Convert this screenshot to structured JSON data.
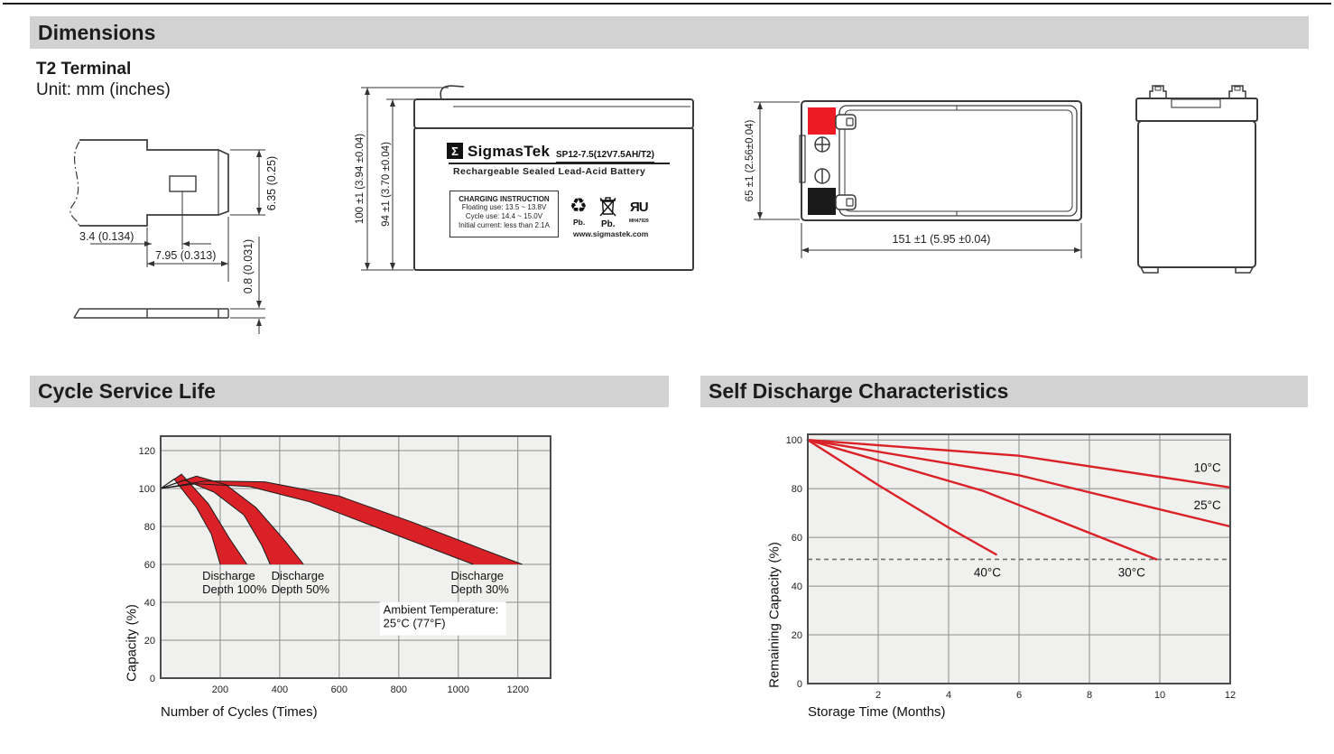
{
  "page": {
    "dimensions_title": "Dimensions",
    "terminal_type": "T2 Terminal",
    "unit_note": "Unit: mm (inches)",
    "cycle_title": "Cycle Service Life",
    "self_title": "Self Discharge Characteristics"
  },
  "terminal_drawing": {
    "dim_tab_offset": "3.4 (0.134)",
    "dim_tab_width": "7.95 (0.313)",
    "dim_tab_height": "6.35 (0.25)",
    "dim_tab_thickness": "0.8 (0.031)"
  },
  "front_view": {
    "dim_total_height": "100 ±1 (3.94 ±0.04)",
    "dim_case_height": "94 ±1 (3.70 ±0.04)",
    "logo_sigma": "Σ",
    "brand": "SigmasTek",
    "model": "SP12-7.5(12V7.5AH/T2)",
    "subtitle": "Rechargeable Sealed Lead-Acid Battery",
    "charging_title": "CHARGING INSTRUCTION",
    "charging_line1": "Floating use: 13.5 ~ 13.8V",
    "charging_line2": "Cycle use: 14.4 ~ 15.0V",
    "charging_line3": "Initial current: less than 2.1A",
    "recycle_glyph": "♻",
    "pb_recycle_label": "Pb.",
    "pb_trash_label": "Pb.",
    "ul_mark": "ЯU",
    "ul_number": "MH47929",
    "website": "www.sigmastek.com"
  },
  "top_view": {
    "dim_height": "65 ±1 (2.56±0.04)",
    "dim_length": "151 ±1 (5.95 ±0.04)"
  },
  "colors": {
    "accent_red": "#da2128",
    "terminal_red": "#ed1c24",
    "header_bg": "#d2d2d2",
    "plot_bg": "#f0f0ee",
    "grid": "#8c8c8c"
  },
  "chart_data": [
    {
      "type": "area",
      "title": "Cycle Service Life",
      "xlabel": "Number of Cycles (Times)",
      "ylabel": "Capacity (%)",
      "xlim": [
        0,
        1310
      ],
      "ylim": [
        0,
        127.6
      ],
      "xticks": [
        200,
        400,
        600,
        800,
        1000,
        1200
      ],
      "yticks": [
        0,
        20,
        40,
        60,
        80,
        100,
        120
      ],
      "grid": true,
      "legend_position": "none",
      "bg": "#f0f0ee",
      "grid_color": "#8c8c8c",
      "color": "#da2128",
      "bands": [
        {
          "name": "Discharge Depth 100%",
          "upper": [
            [
              0,
              100
            ],
            [
              70,
              107.5
            ],
            [
              160,
              92
            ],
            [
              230,
              74
            ],
            [
              290,
              60
            ]
          ],
          "lower": [
            [
              0,
              100
            ],
            [
              45,
              105
            ],
            [
              120,
              90
            ],
            [
              170,
              76
            ],
            [
              200,
              60
            ]
          ]
        },
        {
          "name": "Discharge Depth 50%",
          "upper": [
            [
              0,
              100
            ],
            [
              120,
              106.5
            ],
            [
              220,
              102
            ],
            [
              320,
              90
            ],
            [
              420,
              72
            ],
            [
              480,
              60
            ]
          ],
          "lower": [
            [
              0,
              100
            ],
            [
              80,
              104.5
            ],
            [
              180,
              98
            ],
            [
              280,
              86
            ],
            [
              340,
              70
            ],
            [
              368,
              60
            ]
          ]
        },
        {
          "name": "Discharge Depth 30%",
          "upper": [
            [
              0,
              100
            ],
            [
              150,
              104
            ],
            [
              350,
              103.5
            ],
            [
              600,
              96
            ],
            [
              850,
              82
            ],
            [
              1080,
              68
            ],
            [
              1215,
              60
            ]
          ],
          "lower": [
            [
              0,
              100
            ],
            [
              120,
              102.5
            ],
            [
              300,
              101
            ],
            [
              500,
              93
            ],
            [
              700,
              81
            ],
            [
              900,
              69
            ],
            [
              1050,
              60
            ]
          ]
        }
      ],
      "annotations": [
        {
          "lines": [
            "Discharge",
            "Depth 100%"
          ],
          "x": 140,
          "y": 52,
          "align": "start",
          "bg": false
        },
        {
          "lines": [
            "Discharge",
            "Depth 50%"
          ],
          "x": 372,
          "y": 52,
          "align": "start",
          "bg": false
        },
        {
          "lines": [
            "Discharge",
            "Depth 30%"
          ],
          "x": 975,
          "y": 52,
          "align": "start",
          "bg": false
        },
        {
          "lines": [
            "Ambient Temperature:",
            "25°C (77°F)"
          ],
          "x": 748,
          "y": 34,
          "align": "start",
          "bg": true
        }
      ]
    },
    {
      "type": "line",
      "title": "Self Discharge Characteristics",
      "xlabel": "Storage Time (Months)",
      "ylabel": "Remaining Capacity (%)",
      "xlim": [
        0,
        12
      ],
      "ylim": [
        0,
        102.3
      ],
      "xticks": [
        2,
        4,
        6,
        8,
        10,
        12
      ],
      "yticks": [
        0,
        20,
        40,
        60,
        80,
        100
      ],
      "grid": true,
      "legend_position": "inline-labels",
      "bg": "#f0f0ee",
      "grid_color": "#8c8c8c",
      "color": "#da2128",
      "dashed_line_y": 51,
      "series": [
        {
          "name": "10°C",
          "points": [
            [
              0,
              100
            ],
            [
              6,
              93.5
            ],
            [
              12,
              80.5
            ]
          ],
          "label_pos": [
            11.35,
            87
          ]
        },
        {
          "name": "25°C",
          "points": [
            [
              0,
              100
            ],
            [
              6,
              85.5
            ],
            [
              12,
              64.5
            ]
          ],
          "label_pos": [
            11.35,
            71.5
          ]
        },
        {
          "name": "30°C",
          "points": [
            [
              0,
              100
            ],
            [
              5,
              79
            ],
            [
              9.9,
              51
            ]
          ],
          "label_pos": [
            9.2,
            44
          ]
        },
        {
          "name": "40°C",
          "points": [
            [
              0,
              100
            ],
            [
              2,
              81.5
            ],
            [
              4,
              64
            ],
            [
              5.35,
              53
            ]
          ],
          "label_pos": [
            5.1,
            44
          ]
        }
      ]
    }
  ]
}
